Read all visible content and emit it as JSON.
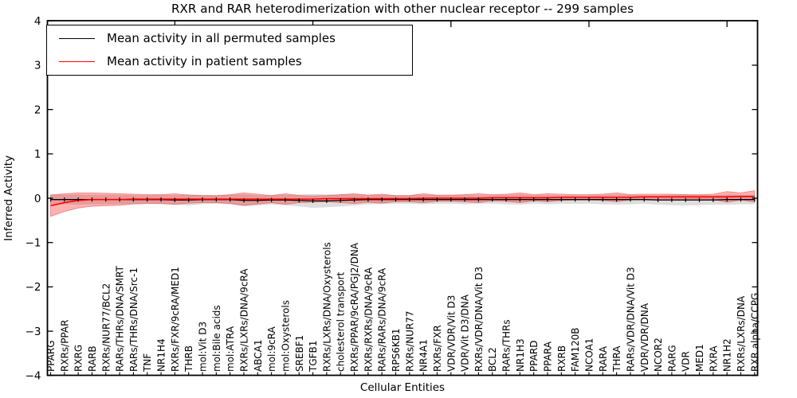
{
  "chart_data": {
    "type": "line",
    "title": "RXR and RAR heterodimerization with other nuclear receptor -- 299 samples",
    "xlabel": "Cellular Entities",
    "ylabel": "Inferred Activity",
    "ylim": [
      -4,
      4
    ],
    "grid": false,
    "legend_position": "upper left",
    "yticks": [
      {
        "value": 4,
        "label": "4"
      },
      {
        "value": 3,
        "label": "3"
      },
      {
        "value": 2,
        "label": "2"
      },
      {
        "value": 1,
        "label": "1"
      },
      {
        "value": 0,
        "label": "0"
      },
      {
        "value": -1,
        "label": "−1"
      },
      {
        "value": -2,
        "label": "−2"
      },
      {
        "value": -3,
        "label": "−3"
      },
      {
        "value": -4,
        "label": "−4"
      }
    ],
    "categories": [
      "PPARG",
      "RXRs/PPAR",
      "RXRG",
      "RARB",
      "RXRs/NUR77/BCL2",
      "RARs/THRs/DNA/SMRT",
      "RARs/THRs/DNA/Src-1",
      "TNF",
      "NR1H4",
      "RXRs/FXR/9cRA/MED1",
      "THRB",
      "mol:Vit D3",
      "mol:Bile acids",
      "mol:ATRA",
      "RXRs/LXRs/DNA/9cRA",
      "ABCA1",
      "mol:9cRA",
      "mol:Oxysterols",
      "SREBF1",
      "TGFB1",
      "RXRs/LXRs/DNA/Oxysterols",
      "cholesterol transport",
      "RXRs/PPAR/9cRA/PGJ2/DNA",
      "RXRs/RXRs/DNA/9cRA",
      "RARs/RARs/DNA/9cRA",
      "RPS6KB1",
      "RXRs/NUR77",
      "NR4A1",
      "RXRs/FXR",
      "VDR/VDR/Vit D3",
      "VDR/Vit D3/DNA",
      "RXRs/VDR/DNA/Vit D3",
      "BCL2",
      "RARs/THRs",
      "NR1H3",
      "PPARD",
      "PPARA",
      "RXRB",
      "FAM120B",
      "NCOA1",
      "RARA",
      "THRA",
      "RARs/VDR/DNA/Vit D3",
      "VDR/VDR/DNA",
      "NCOR2",
      "RARG",
      "VDR",
      "MED1",
      "RXRA",
      "NR1H2",
      "RXRs/LXRs/DNA",
      "RXR alpha/CCPG"
    ],
    "series": [
      {
        "name": "Mean activity in all permuted samples",
        "color": "#000000",
        "line_width": 1.3,
        "markers": true,
        "band_color": "rgba(0,0,0,0.13)",
        "band_edge": "rgba(0,0,0,0.06)",
        "mean": [
          -0.03,
          -0.03,
          -0.03,
          -0.03,
          -0.03,
          -0.03,
          -0.03,
          -0.03,
          -0.03,
          -0.04,
          -0.04,
          -0.03,
          -0.03,
          -0.03,
          -0.05,
          -0.05,
          -0.04,
          -0.04,
          -0.05,
          -0.06,
          -0.06,
          -0.05,
          -0.04,
          -0.03,
          -0.03,
          -0.03,
          -0.03,
          -0.03,
          -0.03,
          -0.03,
          -0.03,
          -0.03,
          -0.03,
          -0.03,
          -0.03,
          -0.03,
          -0.03,
          -0.03,
          -0.03,
          -0.03,
          -0.03,
          -0.03,
          -0.03,
          -0.03,
          -0.04,
          -0.04,
          -0.04,
          -0.04,
          -0.04,
          -0.03,
          -0.03,
          -0.03
        ],
        "std": [
          0.11,
          0.1,
          0.11,
          0.1,
          0.1,
          0.1,
          0.09,
          0.09,
          0.1,
          0.1,
          0.12,
          0.1,
          0.09,
          0.1,
          0.13,
          0.11,
          0.1,
          0.11,
          0.13,
          0.15,
          0.14,
          0.13,
          0.12,
          0.1,
          0.1,
          0.09,
          0.09,
          0.1,
          0.09,
          0.09,
          0.1,
          0.09,
          0.09,
          0.1,
          0.11,
          0.09,
          0.1,
          0.09,
          0.09,
          0.09,
          0.1,
          0.11,
          0.1,
          0.09,
          0.1,
          0.11,
          0.12,
          0.11,
          0.1,
          0.11,
          0.1,
          0.1
        ]
      },
      {
        "name": "Mean activity in patient samples",
        "color": "#ff0000",
        "line_width": 1.6,
        "markers": false,
        "band_color": "rgba(255,0,0,0.30)",
        "band_edge": "rgba(220,60,60,0.50)",
        "mean": [
          -0.17,
          -0.1,
          -0.05,
          -0.03,
          -0.03,
          -0.03,
          -0.02,
          -0.02,
          -0.02,
          -0.02,
          -0.02,
          -0.02,
          -0.02,
          -0.02,
          -0.02,
          -0.02,
          -0.02,
          -0.02,
          -0.02,
          -0.02,
          -0.01,
          -0.01,
          -0.01,
          -0.01,
          -0.01,
          -0.01,
          -0.01,
          0.0,
          0.0,
          0.0,
          0.0,
          0.0,
          0.01,
          0.01,
          0.01,
          0.01,
          0.01,
          0.02,
          0.02,
          0.02,
          0.02,
          0.02,
          0.02,
          0.03,
          0.03,
          0.03,
          0.03,
          0.03,
          0.03,
          0.03,
          0.04,
          0.04
        ],
        "std": [
          0.24,
          0.2,
          0.17,
          0.15,
          0.14,
          0.13,
          0.11,
          0.1,
          0.1,
          0.12,
          0.09,
          0.08,
          0.08,
          0.1,
          0.14,
          0.11,
          0.08,
          0.12,
          0.08,
          0.07,
          0.07,
          0.09,
          0.11,
          0.08,
          0.1,
          0.07,
          0.07,
          0.1,
          0.07,
          0.07,
          0.08,
          0.1,
          0.07,
          0.08,
          0.11,
          0.07,
          0.09,
          0.07,
          0.06,
          0.06,
          0.07,
          0.1,
          0.06,
          0.06,
          0.06,
          0.06,
          0.05,
          0.05,
          0.06,
          0.12,
          0.08,
          0.13
        ]
      }
    ]
  },
  "legend": {
    "items": [
      {
        "label": "Mean activity in all permuted samples",
        "color": "#000000"
      },
      {
        "label": "Mean activity in patient samples",
        "color": "#ff0000"
      }
    ]
  }
}
